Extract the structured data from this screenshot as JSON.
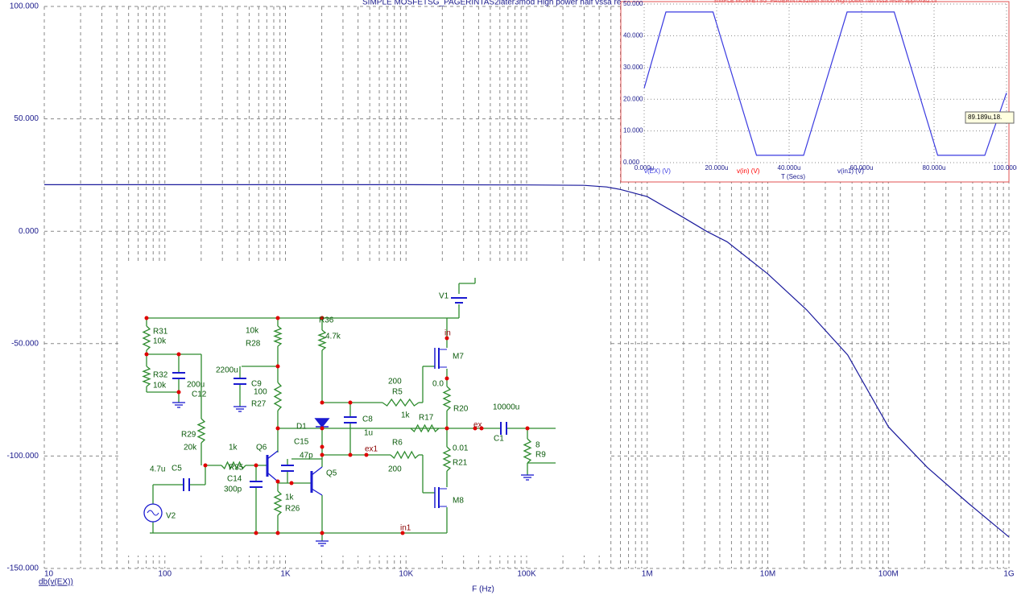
{
  "chart_data": [
    {
      "type": "line",
      "title": "SIMPLE MOSFETSG_PAGERINTAS2later3mod High power half vssa re",
      "x_label": "F (Hz)",
      "y_label": "db(v(EX))",
      "log_x": true,
      "grid": true,
      "xlim": [
        10,
        1000000000
      ],
      "ylim": [
        -150,
        100
      ],
      "xticks": [
        10,
        100,
        {
          "value": 1000,
          "label": "1K"
        },
        {
          "value": 10000,
          "label": "10K"
        },
        {
          "value": 100000,
          "label": "100K"
        },
        {
          "value": 1000000,
          "label": "1M"
        },
        {
          "value": 10000000,
          "label": "10M"
        },
        {
          "value": 100000000,
          "label": "100M"
        },
        {
          "value": 1000000000,
          "label": "1G"
        }
      ],
      "yticks": [
        {
          "value": -150,
          "label": "-150.000"
        },
        {
          "value": -100,
          "label": "-100.000"
        },
        {
          "value": -50,
          "label": "-50.000"
        },
        {
          "value": 0,
          "label": "0.000"
        },
        {
          "value": 50,
          "label": "50.000"
        },
        {
          "value": 100,
          "label": "100.000"
        }
      ],
      "series": [
        {
          "name": "db(v(EX))",
          "color": "#1a1a9c",
          "x": [
            10,
            100,
            1000,
            10000,
            100000,
            300000,
            460000,
            600000,
            1000000,
            2000000,
            3100000,
            4600000,
            10000000,
            21000000,
            46000000,
            100000000,
            210000000,
            460000000,
            1000000000
          ],
          "values": [
            20.7,
            20.7,
            20.7,
            20.7,
            20.6,
            20.4,
            19.7,
            18.6,
            15.4,
            6.1,
            0,
            -4.7,
            -19,
            -35,
            -55,
            -87,
            -105,
            -121,
            -136
          ]
        }
      ]
    },
    {
      "type": "line",
      "title": "SIMPLE MOSFETSG_PAGERINTAS2later3mod High power half vssa restet approval2.cir",
      "x_label": "T (Secs)",
      "grid": true,
      "xlim": [
        0,
        100
      ],
      "ylim": [
        0,
        50
      ],
      "xticks": [
        {
          "value": 0,
          "label": "0.000u"
        },
        {
          "value": 20,
          "label": "20.000u"
        },
        {
          "value": 40,
          "label": "40.000u"
        },
        {
          "value": 60,
          "label": "60.000u"
        },
        {
          "value": 80,
          "label": "80.000u"
        },
        {
          "value": 100,
          "label": "100.000u"
        }
      ],
      "yticks": [
        {
          "value": 0,
          "label": "0.000"
        },
        {
          "value": 10,
          "label": "10.000"
        },
        {
          "value": 20,
          "label": "20.000"
        },
        {
          "value": 30,
          "label": "30.000"
        },
        {
          "value": 40,
          "label": "40.000"
        },
        {
          "value": 50,
          "label": "50.000"
        }
      ],
      "series": [
        {
          "name": "v(EX) (V)",
          "color": "#3a3ae0",
          "x": [
            0,
            6,
            19,
            31,
            44,
            56,
            69,
            81,
            94,
            100
          ],
          "values": [
            23.5,
            47.5,
            47.5,
            2.3,
            2.3,
            47.5,
            47.5,
            2.3,
            2.3,
            22
          ]
        }
      ],
      "other_traces": [
        {
          "name": "v(in) (V)",
          "color": "#ff0000"
        },
        {
          "name": "v(in1) (V)",
          "color": "#1a1a9c"
        }
      ],
      "cursor_label": "89.189u,18."
    }
  ],
  "schematic": {
    "labels": [
      "R31",
      "10k",
      "R32",
      "10k",
      "200u",
      "C12",
      "R29",
      "20k",
      "10k",
      "R28",
      "2200u",
      "C9",
      "100",
      "R27",
      "R36",
      "4.7k",
      "V1",
      "M7",
      "0.0",
      "R20",
      "200",
      "R5",
      "1k",
      "R17",
      "10000u",
      "D1",
      "C8",
      "1u",
      "C1",
      "8",
      "R9",
      "C15",
      "47p",
      "R6",
      "200",
      "0.01",
      "R21",
      "1k",
      "R35",
      "Q6",
      "4.7u",
      "C5",
      "C14",
      "300p",
      "Q5",
      "1k",
      "R26",
      "V2",
      "M8"
    ],
    "nodes": [
      "in",
      "ex",
      "ex1",
      "in1"
    ]
  }
}
